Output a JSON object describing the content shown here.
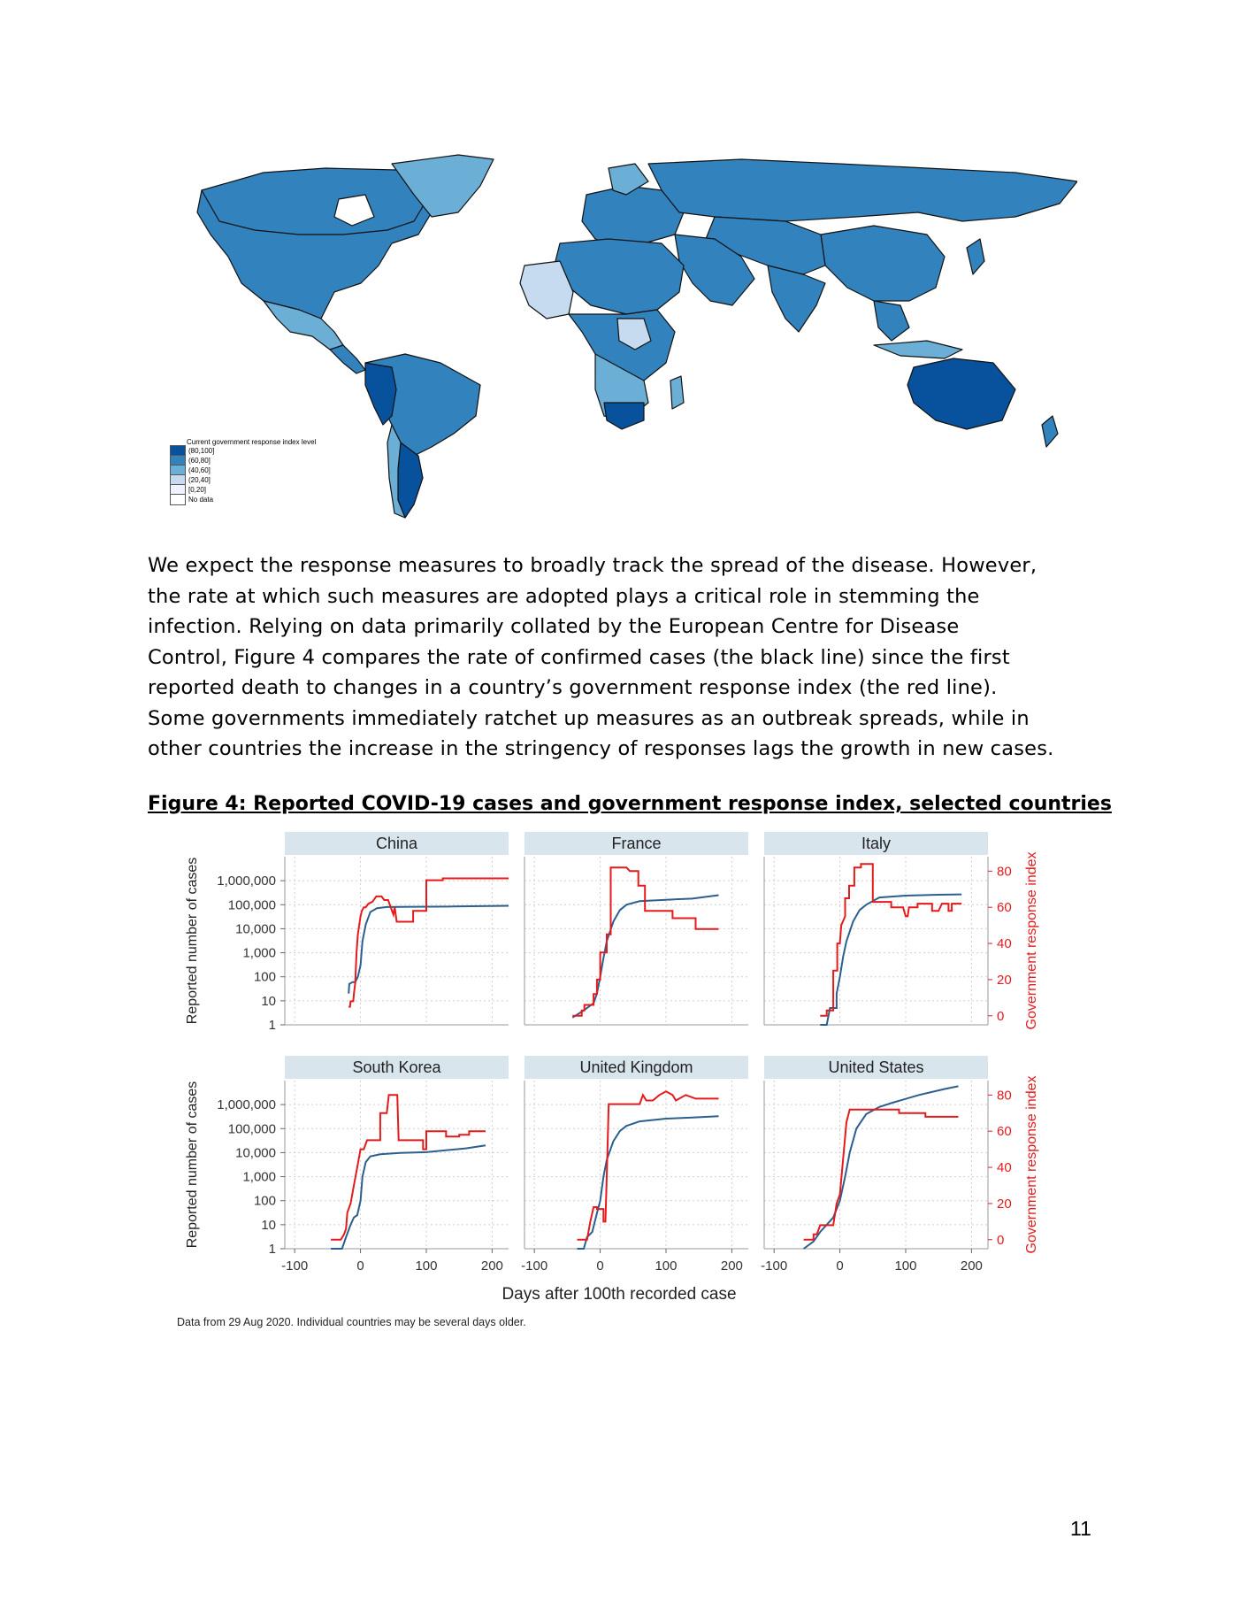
{
  "map": {
    "legend_title": "Current government response index level",
    "legend_items": [
      {
        "label": "(80,100]",
        "color": "#08519c"
      },
      {
        "label": "(60,80]",
        "color": "#3182bd"
      },
      {
        "label": "(40,60]",
        "color": "#6baed6"
      },
      {
        "label": "(20,40]",
        "color": "#c6dbef"
      },
      {
        "label": "[0,20]",
        "color": "#eff3ff"
      },
      {
        "label": "No data",
        "color": "#ffffff"
      }
    ]
  },
  "paragraph_lines": [
    "We expect the response measures to broadly track the spread of the disease. However,",
    "the rate at which such measures are adopted plays a critical role in stemming the",
    "infection. Relying on data primarily collated by the European Centre for Disease",
    "Control, Figure 4 compares the rate of confirmed cases (the black line) since the first",
    "reported death to changes in a country’s government response index (the red line).",
    "Some governments immediately ratchet up measures as an outbreak spreads, while in",
    "other countries the increase in the stringency of responses lags the growth in new cases."
  ],
  "figure_title": "Figure 4: Reported COVID-19 cases and government response index, selected countries",
  "page_number": "11",
  "chart_data": {
    "type": "line",
    "xlabel": "Days after 100th recorded case",
    "ylabel_left": "Reported number of cases",
    "ylabel_right": "Government response index",
    "note": "Data from 29 Aug 2020. Individual countries may be several days older.",
    "x_ticks": [
      "-100",
      "0",
      "100",
      "200"
    ],
    "xlim": [
      -115,
      225
    ],
    "y_left_ticks": [
      "1",
      "10",
      "100",
      "1,000",
      "10,000",
      "100,000",
      "1,000,000"
    ],
    "y_left_scale": "log",
    "y_left_lim": [
      1,
      10000000
    ],
    "y_right_ticks": [
      "0",
      "20",
      "40",
      "60",
      "80"
    ],
    "y_right_lim": [
      -5,
      88
    ],
    "colors": {
      "cases": "#2b5f8e",
      "index": "#e41a1c",
      "strip": "#d9e5ed"
    },
    "panels": [
      {
        "name": "China",
        "cases": [
          [
            -18,
            20
          ],
          [
            -17,
            50
          ],
          [
            -12,
            60
          ],
          [
            -8,
            60
          ],
          [
            -4,
            100
          ],
          [
            0,
            300
          ],
          [
            3,
            3000
          ],
          [
            8,
            15000
          ],
          [
            15,
            50000
          ],
          [
            25,
            72000
          ],
          [
            40,
            80000
          ],
          [
            80,
            82000
          ],
          [
            140,
            84000
          ],
          [
            225,
            90000
          ]
        ],
        "index": [
          [
            -18,
            5
          ],
          [
            -16,
            5
          ],
          [
            -15,
            8
          ],
          [
            -11,
            8
          ],
          [
            -10,
            12
          ],
          [
            -8,
            18
          ],
          [
            -6,
            35
          ],
          [
            -4,
            45
          ],
          [
            0,
            55
          ],
          [
            2,
            58
          ],
          [
            5,
            60
          ],
          [
            8,
            60
          ],
          [
            12,
            62
          ],
          [
            18,
            63
          ],
          [
            24,
            66
          ],
          [
            32,
            66
          ],
          [
            36,
            64
          ],
          [
            42,
            64
          ],
          [
            44,
            62
          ],
          [
            50,
            56
          ],
          [
            52,
            60
          ],
          [
            55,
            52
          ],
          [
            80,
            52
          ],
          [
            80,
            58
          ],
          [
            100,
            58
          ],
          [
            100,
            75
          ],
          [
            125,
            75
          ],
          [
            125,
            76
          ],
          [
            225,
            76
          ]
        ]
      },
      {
        "name": "France",
        "cases": [
          [
            -42,
            2
          ],
          [
            -25,
            4
          ],
          [
            -10,
            8
          ],
          [
            -5,
            20
          ],
          [
            0,
            100
          ],
          [
            5,
            600
          ],
          [
            10,
            3000
          ],
          [
            20,
            20000
          ],
          [
            30,
            60000
          ],
          [
            40,
            100000
          ],
          [
            60,
            140000
          ],
          [
            100,
            160000
          ],
          [
            140,
            180000
          ],
          [
            180,
            250000
          ]
        ],
        "index": [
          [
            -42,
            0
          ],
          [
            -28,
            0
          ],
          [
            -28,
            3
          ],
          [
            -24,
            3
          ],
          [
            -24,
            6
          ],
          [
            -10,
            6
          ],
          [
            -10,
            12
          ],
          [
            -5,
            12
          ],
          [
            -5,
            20
          ],
          [
            0,
            20
          ],
          [
            0,
            35
          ],
          [
            10,
            35
          ],
          [
            10,
            45
          ],
          [
            16,
            45
          ],
          [
            16,
            82
          ],
          [
            40,
            82
          ],
          [
            45,
            80
          ],
          [
            58,
            80
          ],
          [
            58,
            72
          ],
          [
            68,
            72
          ],
          [
            68,
            58
          ],
          [
            110,
            58
          ],
          [
            110,
            54
          ],
          [
            145,
            54
          ],
          [
            145,
            48
          ],
          [
            180,
            48
          ]
        ]
      },
      {
        "name": "Italy",
        "cases": [
          [
            -30,
            1
          ],
          [
            -20,
            1
          ],
          [
            -15,
            5
          ],
          [
            -5,
            5
          ],
          [
            -5,
            20
          ],
          [
            0,
            100
          ],
          [
            5,
            700
          ],
          [
            10,
            3000
          ],
          [
            20,
            20000
          ],
          [
            30,
            60000
          ],
          [
            40,
            100000
          ],
          [
            60,
            200000
          ],
          [
            100,
            240000
          ],
          [
            150,
            260000
          ],
          [
            185,
            270000
          ]
        ],
        "index": [
          [
            -30,
            0
          ],
          [
            -20,
            0
          ],
          [
            -20,
            3
          ],
          [
            -10,
            3
          ],
          [
            -10,
            25
          ],
          [
            -4,
            25
          ],
          [
            -4,
            40
          ],
          [
            0,
            40
          ],
          [
            2,
            50
          ],
          [
            8,
            55
          ],
          [
            8,
            65
          ],
          [
            14,
            65
          ],
          [
            14,
            72
          ],
          [
            22,
            72
          ],
          [
            22,
            82
          ],
          [
            32,
            82
          ],
          [
            32,
            84
          ],
          [
            50,
            84
          ],
          [
            50,
            63
          ],
          [
            78,
            63
          ],
          [
            78,
            60
          ],
          [
            96,
            60
          ],
          [
            100,
            55
          ],
          [
            103,
            55
          ],
          [
            105,
            60
          ],
          [
            118,
            60
          ],
          [
            118,
            62
          ],
          [
            140,
            62
          ],
          [
            140,
            58
          ],
          [
            150,
            58
          ],
          [
            155,
            62
          ],
          [
            165,
            62
          ],
          [
            165,
            58
          ],
          [
            170,
            58
          ],
          [
            170,
            62
          ],
          [
            185,
            62
          ]
        ]
      },
      {
        "name": "South Korea",
        "cases": [
          [
            -45,
            1
          ],
          [
            -28,
            1
          ],
          [
            -22,
            3
          ],
          [
            -15,
            10
          ],
          [
            -10,
            20
          ],
          [
            -5,
            25
          ],
          [
            0,
            100
          ],
          [
            3,
            1000
          ],
          [
            8,
            4000
          ],
          [
            15,
            7000
          ],
          [
            30,
            8500
          ],
          [
            60,
            9700
          ],
          [
            100,
            10500
          ],
          [
            160,
            15000
          ],
          [
            190,
            20000
          ]
        ],
        "index": [
          [
            -45,
            0
          ],
          [
            -30,
            0
          ],
          [
            -25,
            3
          ],
          [
            -22,
            6
          ],
          [
            -20,
            15
          ],
          [
            -15,
            20
          ],
          [
            -10,
            30
          ],
          [
            -5,
            40
          ],
          [
            0,
            50
          ],
          [
            5,
            50
          ],
          [
            10,
            55
          ],
          [
            30,
            55
          ],
          [
            30,
            70
          ],
          [
            40,
            70
          ],
          [
            43,
            80
          ],
          [
            56,
            80
          ],
          [
            58,
            55
          ],
          [
            95,
            55
          ],
          [
            95,
            50
          ],
          [
            100,
            50
          ],
          [
            100,
            60
          ],
          [
            130,
            60
          ],
          [
            130,
            57
          ],
          [
            150,
            57
          ],
          [
            150,
            58
          ],
          [
            165,
            58
          ],
          [
            165,
            60
          ],
          [
            190,
            60
          ]
        ]
      },
      {
        "name": "United Kingdom",
        "cases": [
          [
            -35,
            1
          ],
          [
            -25,
            1
          ],
          [
            -20,
            3
          ],
          [
            -12,
            5
          ],
          [
            -5,
            30
          ],
          [
            0,
            100
          ],
          [
            5,
            1000
          ],
          [
            10,
            5000
          ],
          [
            20,
            30000
          ],
          [
            30,
            80000
          ],
          [
            40,
            130000
          ],
          [
            60,
            200000
          ],
          [
            100,
            260000
          ],
          [
            140,
            290000
          ],
          [
            180,
            330000
          ]
        ],
        "index": [
          [
            -35,
            0
          ],
          [
            -20,
            0
          ],
          [
            -15,
            10
          ],
          [
            -10,
            18
          ],
          [
            -5,
            18
          ],
          [
            -5,
            17
          ],
          [
            5,
            17
          ],
          [
            5,
            10
          ],
          [
            8,
            10
          ],
          [
            10,
            35
          ],
          [
            13,
            75
          ],
          [
            60,
            75
          ],
          [
            65,
            80
          ],
          [
            70,
            77
          ],
          [
            80,
            77
          ],
          [
            90,
            80
          ],
          [
            100,
            82
          ],
          [
            110,
            80
          ],
          [
            115,
            77
          ],
          [
            130,
            80
          ],
          [
            145,
            78
          ],
          [
            180,
            78
          ]
        ]
      },
      {
        "name": "United States",
        "cases": [
          [
            -55,
            1
          ],
          [
            -40,
            2
          ],
          [
            -30,
            5
          ],
          [
            -20,
            10
          ],
          [
            -10,
            20
          ],
          [
            0,
            100
          ],
          [
            8,
            1000
          ],
          [
            15,
            10000
          ],
          [
            25,
            100000
          ],
          [
            40,
            400000
          ],
          [
            60,
            800000
          ],
          [
            80,
            1200000
          ],
          [
            120,
            2500000
          ],
          [
            160,
            4500000
          ],
          [
            180,
            5800000
          ]
        ],
        "index": [
          [
            -55,
            0
          ],
          [
            -40,
            0
          ],
          [
            -40,
            3
          ],
          [
            -35,
            3
          ],
          [
            -30,
            8
          ],
          [
            -20,
            8
          ],
          [
            -10,
            8
          ],
          [
            -5,
            20
          ],
          [
            0,
            25
          ],
          [
            5,
            45
          ],
          [
            10,
            65
          ],
          [
            15,
            72
          ],
          [
            90,
            72
          ],
          [
            90,
            70
          ],
          [
            130,
            70
          ],
          [
            130,
            68
          ],
          [
            180,
            68
          ]
        ]
      }
    ]
  }
}
